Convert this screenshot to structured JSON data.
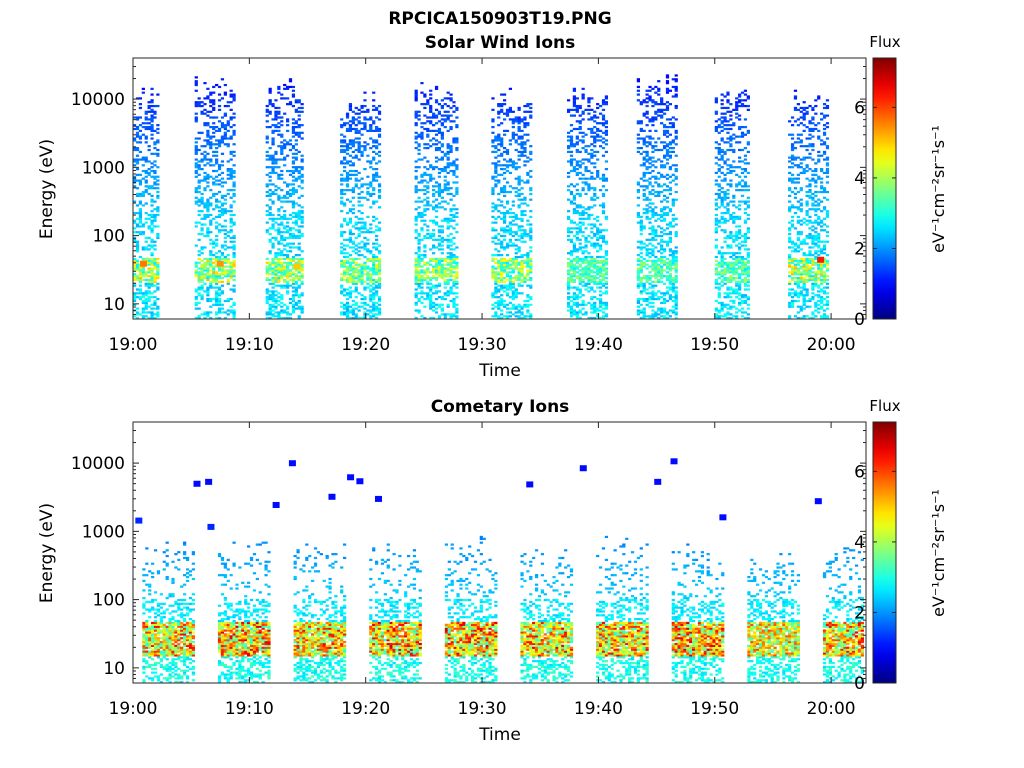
{
  "figure": {
    "title": "RPCICA150903T19.PNG"
  },
  "chart_data": [
    {
      "type": "heatmap",
      "title": "Solar Wind Ions",
      "xlabel": "Time",
      "ylabel": "Energy (eV)",
      "y_scale": "log",
      "ylim": [
        6,
        40000
      ],
      "xlim": [
        "19:00",
        "20:03"
      ],
      "x_ticks": [
        "19:00",
        "19:10",
        "19:20",
        "19:30",
        "19:40",
        "19:50",
        "20:00"
      ],
      "y_ticks": [
        "10",
        "100",
        "1000",
        "10000"
      ],
      "colorbar": {
        "label": "Flux",
        "unit": "eV⁻¹cm⁻²sr⁻¹s⁻¹",
        "range": [
          0,
          7.4
        ],
        "ticks": [
          "0",
          "2",
          "4",
          "6"
        ],
        "colormap": "jet"
      },
      "sweeps": [
        {
          "center_min": 1,
          "width_min": 2.2,
          "max_energy_ev": 15000,
          "peak_band_flux": 5.2
        },
        {
          "center_min": 7,
          "width_min": 3.4,
          "max_energy_ev": 22000,
          "peak_band_flux": 5.2
        },
        {
          "center_min": 13,
          "width_min": 3.2,
          "max_energy_ev": 20000,
          "peak_band_flux": 5.0
        },
        {
          "center_min": 19.5,
          "width_min": 3.4,
          "max_energy_ev": 15000,
          "peak_band_flux": 4.6
        },
        {
          "center_min": 26,
          "width_min": 3.6,
          "max_energy_ev": 20000,
          "peak_band_flux": 4.8
        },
        {
          "center_min": 32.5,
          "width_min": 3.4,
          "max_energy_ev": 15000,
          "peak_band_flux": 4.8
        },
        {
          "center_min": 39,
          "width_min": 3.4,
          "max_energy_ev": 15000,
          "peak_band_flux": 4.0
        },
        {
          "center_min": 45,
          "width_min": 3.4,
          "max_energy_ev": 25000,
          "peak_band_flux": 4.0
        },
        {
          "center_min": 51.5,
          "width_min": 3.0,
          "max_energy_ev": 15000,
          "peak_band_flux": 4.0
        },
        {
          "center_min": 58,
          "width_min": 3.4,
          "max_energy_ev": 15000,
          "peak_band_flux": 5.2
        }
      ],
      "cells": [
        [
          0.6,
          35,
          5.6
        ],
        [
          7.2,
          35,
          5.4
        ],
        [
          13.8,
          32,
          5.0
        ],
        [
          58.8,
          40,
          6.3
        ]
      ]
    },
    {
      "type": "heatmap",
      "title": "Cometary Ions",
      "xlabel": "Time",
      "ylabel": "Energy (eV)",
      "y_scale": "log",
      "ylim": [
        6,
        40000
      ],
      "xlim": [
        "19:00",
        "20:03"
      ],
      "x_ticks": [
        "19:00",
        "19:10",
        "19:20",
        "19:30",
        "19:40",
        "19:50",
        "20:00"
      ],
      "y_ticks": [
        "10",
        "100",
        "1000",
        "10000"
      ],
      "colorbar": {
        "label": "Flux",
        "unit": "eV⁻¹cm⁻²sr⁻¹s⁻¹",
        "range": [
          0,
          7.4
        ],
        "ticks": [
          "0",
          "2",
          "4",
          "6"
        ],
        "colormap": "jet"
      },
      "sweeps": [
        {
          "center_min": 3,
          "width_min": 4.4,
          "max_energy_ev": 900,
          "peak_band_flux": 6.5
        },
        {
          "center_min": 9.5,
          "width_min": 4.4,
          "max_energy_ev": 900,
          "peak_band_flux": 6.8
        },
        {
          "center_min": 16,
          "width_min": 4.4,
          "max_energy_ev": 900,
          "peak_band_flux": 6.5
        },
        {
          "center_min": 22.5,
          "width_min": 4.4,
          "max_energy_ev": 800,
          "peak_band_flux": 6.8
        },
        {
          "center_min": 29,
          "width_min": 4.4,
          "max_energy_ev": 1000,
          "peak_band_flux": 6.8
        },
        {
          "center_min": 35.5,
          "width_min": 4.4,
          "max_energy_ev": 800,
          "peak_band_flux": 6.6
        },
        {
          "center_min": 42,
          "width_min": 4.4,
          "max_energy_ev": 900,
          "peak_band_flux": 6.6
        },
        {
          "center_min": 48.5,
          "width_min": 4.4,
          "max_energy_ev": 700,
          "peak_band_flux": 6.8
        },
        {
          "center_min": 55,
          "width_min": 4.4,
          "max_energy_ev": 600,
          "peak_band_flux": 6.0
        },
        {
          "center_min": 61,
          "width_min": 3.4,
          "max_energy_ev": 800,
          "peak_band_flux": 6.6
        }
      ],
      "cells": [
        [
          0.2,
          1300,
          1.2
        ],
        [
          5.2,
          4500,
          1.0
        ],
        [
          6.2,
          4800,
          1.0
        ],
        [
          6.4,
          1050,
          1.2
        ],
        [
          12,
          2200,
          1.0
        ],
        [
          13.4,
          9000,
          1.0
        ],
        [
          16.8,
          2900,
          1.0
        ],
        [
          18.4,
          5600,
          1.0
        ],
        [
          19.2,
          4900,
          1.0
        ],
        [
          20.8,
          2700,
          1.0
        ],
        [
          33.8,
          4400,
          1.0
        ],
        [
          38.4,
          7600,
          1.0
        ],
        [
          44.8,
          4800,
          1.0
        ],
        [
          46.2,
          9600,
          1.0
        ],
        [
          50.4,
          1450,
          1.0
        ],
        [
          58.6,
          2500,
          1.0
        ]
      ]
    }
  ]
}
